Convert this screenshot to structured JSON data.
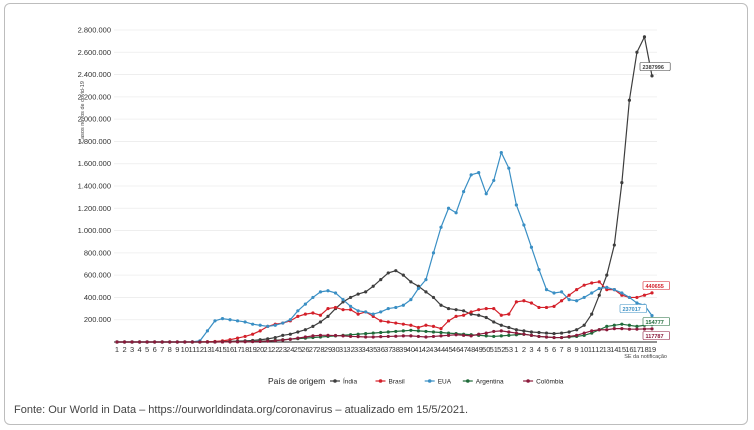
{
  "caption": "Fonte: Our World in Data – https://ourworldindata.org/coronavirus – atualizado em 15/5/2021.",
  "chart_data": {
    "type": "line",
    "ylabel": "Casos novos de covid-19",
    "xlabel": "SE da notificação",
    "ylim": [
      0,
      2800000
    ],
    "yticks": [
      200000,
      400000,
      600000,
      800000,
      1000000,
      1200000,
      1400000,
      1600000,
      1800000,
      2000000,
      2200000,
      2400000,
      2600000,
      2800000
    ],
    "ytick_labels": [
      "200.000",
      "400.000",
      "600.000",
      "800.000",
      "1.000.000",
      "1.200.000",
      "1.400.000",
      "1.600.000",
      "1.800.000",
      "2.000.000",
      "2.200.000",
      "2.400.000",
      "2.600.000",
      "2.800.000"
    ],
    "x_tick_labels": [
      "1",
      "2",
      "3",
      "4",
      "5",
      "6",
      "7",
      "8",
      "9",
      "10",
      "11",
      "12",
      "13",
      "14",
      "15",
      "16",
      "17",
      "18",
      "19",
      "20",
      "21",
      "22",
      "23",
      "24",
      "25",
      "26",
      "27",
      "28",
      "29",
      "30",
      "31",
      "32",
      "33",
      "34",
      "35",
      "36",
      "37",
      "38",
      "39",
      "40",
      "41",
      "42",
      "43",
      "44",
      "45",
      "46",
      "47",
      "48",
      "49",
      "50",
      "51",
      "52",
      "53",
      "1",
      "2",
      "3",
      "4",
      "5",
      "6",
      "7",
      "8",
      "9",
      "10",
      "11",
      "12",
      "13",
      "14",
      "15",
      "16",
      "17",
      "18",
      "19"
    ],
    "legend": {
      "title": "País de origem",
      "position": "bottom"
    },
    "grid": true,
    "series": [
      {
        "name": "Índia",
        "color": "#3d3d3d",
        "values": [
          0,
          0,
          0,
          0,
          0,
          0,
          0,
          0,
          0,
          10,
          30,
          100,
          400,
          1500,
          4000,
          6000,
          8000,
          10000,
          14000,
          20000,
          28000,
          40000,
          60000,
          70000,
          90000,
          110000,
          140000,
          180000,
          230000,
          300000,
          360000,
          400000,
          430000,
          450000,
          500000,
          560000,
          620000,
          640000,
          600000,
          540000,
          500000,
          450000,
          400000,
          330000,
          300000,
          290000,
          280000,
          250000,
          240000,
          220000,
          180000,
          150000,
          130000,
          110000,
          100000,
          90000,
          85000,
          80000,
          75000,
          80000,
          90000,
          110000,
          150000,
          250000,
          420000,
          600000,
          870000,
          1430000,
          2170000,
          2600000,
          2738000,
          2387996
        ]
      },
      {
        "name": "Brasil",
        "color": "#d4202a",
        "values": [
          0,
          0,
          0,
          0,
          0,
          0,
          0,
          0,
          10,
          100,
          500,
          1500,
          3000,
          5000,
          10000,
          20000,
          35000,
          50000,
          70000,
          100000,
          140000,
          160000,
          170000,
          190000,
          230000,
          250000,
          260000,
          240000,
          300000,
          310000,
          290000,
          290000,
          250000,
          270000,
          230000,
          190000,
          180000,
          170000,
          160000,
          150000,
          130000,
          150000,
          140000,
          120000,
          190000,
          230000,
          240000,
          270000,
          290000,
          300000,
          300000,
          240000,
          250000,
          360000,
          370000,
          350000,
          310000,
          310000,
          320000,
          370000,
          420000,
          470000,
          510000,
          530000,
          540000,
          470000,
          470000,
          420000,
          400000,
          400000,
          420000,
          440655
        ]
      },
      {
        "name": "EUA",
        "color": "#3a8fc4",
        "values": [
          0,
          0,
          0,
          0,
          0,
          0,
          0,
          0,
          10,
          100,
          1000,
          10000,
          100000,
          190000,
          210000,
          200000,
          190000,
          180000,
          160000,
          150000,
          140000,
          150000,
          170000,
          200000,
          280000,
          340000,
          400000,
          450000,
          460000,
          440000,
          380000,
          320000,
          280000,
          270000,
          250000,
          270000,
          300000,
          310000,
          330000,
          380000,
          480000,
          560000,
          800000,
          1030000,
          1200000,
          1160000,
          1350000,
          1500000,
          1520000,
          1330000,
          1450000,
          1700000,
          1560000,
          1230000,
          1050000,
          850000,
          650000,
          470000,
          440000,
          450000,
          380000,
          370000,
          400000,
          440000,
          480000,
          490000,
          470000,
          440000,
          400000,
          350000,
          330000,
          237017
        ]
      },
      {
        "name": "Argentina",
        "color": "#1f6b3a",
        "values": [
          0,
          0,
          0,
          0,
          0,
          0,
          0,
          0,
          0,
          0,
          0,
          0,
          0,
          0,
          1000,
          2000,
          3000,
          4000,
          5000,
          7000,
          10000,
          15000,
          20000,
          25000,
          30000,
          35000,
          40000,
          45000,
          50000,
          55000,
          60000,
          65000,
          70000,
          75000,
          80000,
          85000,
          90000,
          95000,
          100000,
          105000,
          100000,
          95000,
          90000,
          85000,
          80000,
          75000,
          70000,
          65000,
          60000,
          55000,
          50000,
          55000,
          60000,
          65000,
          70000,
          60000,
          50000,
          45000,
          40000,
          40000,
          45000,
          50000,
          60000,
          80000,
          110000,
          140000,
          150000,
          160000,
          150000,
          140000,
          150000,
          154777
        ]
      },
      {
        "name": "Colômbia",
        "color": "#8b1a3b",
        "values": [
          0,
          0,
          0,
          0,
          0,
          0,
          0,
          0,
          0,
          0,
          0,
          0,
          0,
          0,
          500,
          1000,
          1500,
          2000,
          3000,
          5000,
          8000,
          12000,
          18000,
          25000,
          35000,
          45000,
          55000,
          60000,
          60000,
          58000,
          55000,
          50000,
          48000,
          45000,
          45000,
          48000,
          50000,
          52000,
          55000,
          55000,
          50000,
          45000,
          50000,
          55000,
          60000,
          65000,
          60000,
          55000,
          70000,
          80000,
          95000,
          100000,
          90000,
          80000,
          70000,
          60000,
          50000,
          45000,
          40000,
          40000,
          50000,
          60000,
          80000,
          100000,
          110000,
          110000,
          120000,
          120000,
          115000,
          115000,
          117000,
          117787
        ]
      }
    ],
    "end_labels": [
      {
        "series": "Índia",
        "text": "2387996"
      },
      {
        "series": "Brasil",
        "text": "440655"
      },
      {
        "series": "EUA",
        "text": "237017"
      },
      {
        "series": "Argentina",
        "text": "154777"
      },
      {
        "series": "Colômbia",
        "text": "117787"
      }
    ]
  }
}
